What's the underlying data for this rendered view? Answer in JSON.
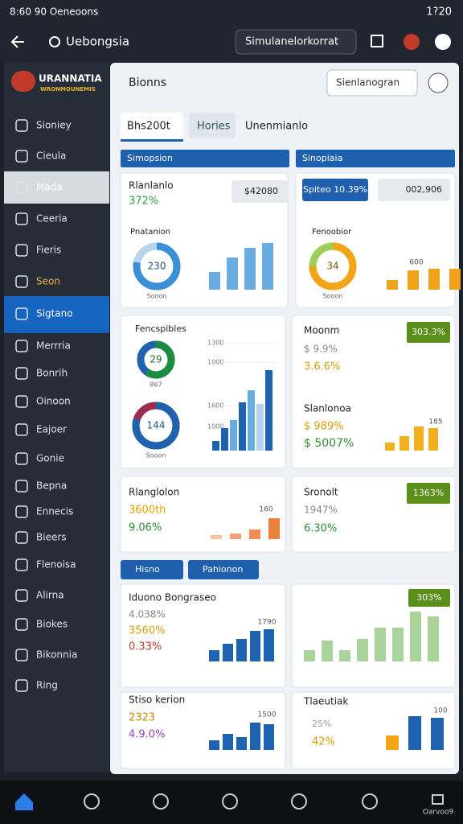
{
  "status_bar": {
    "left": "8:60 90 Oeneoons",
    "right": "1?20"
  },
  "app_bar": {
    "title": "Uebongsia",
    "search": "Simulanelorkorrat"
  },
  "sidebar": {
    "logo": "URANNATIA",
    "logo_sub": "WRONMOUNEMIS",
    "items": [
      "Sioniey",
      "Cieula",
      "Mada",
      "Ceeria",
      "Fieris",
      "Seon",
      "Sigtano",
      "Merrria",
      "Bonrih",
      "Oinoon",
      "Eajoer",
      "Gonie",
      "Bepna",
      "Ennecis",
      "Bieers",
      "Flenoisa",
      "Alirna",
      "Biokes",
      "Bikonnia",
      "Ring"
    ]
  },
  "header": {
    "title": "Bionns",
    "select": "Sienlanogran"
  },
  "tabs": [
    "Bhs200t",
    "Hories",
    "Unenmianlo"
  ],
  "dropdowns": [
    "Simopsion",
    "Sinopiaia",
    "Hisno",
    "Pahionon"
  ],
  "cards": [
    {
      "title": "Rlanlanlo",
      "value": "372%",
      "badge": "$42080",
      "subtitle": "Pnatanion",
      "donut": "230",
      "donut_caption": "Sooon",
      "bar_values": [
        22,
        40,
        52,
        58
      ]
    },
    {
      "badge": "Spiteo 10.39%",
      "badge2": "002,906",
      "subtitle": "Fenoobior",
      "donut": "34",
      "donut_caption": "Sooon",
      "bar_top": "600",
      "bar_values": [
        12,
        24,
        26,
        26
      ]
    },
    {
      "title": "Fencspibles",
      "donut": "29",
      "donut_caption": "867",
      "donut2": "144",
      "donut2_caption": "Sooon",
      "axis": [
        "1300",
        "1000",
        "1600",
        "1000"
      ],
      "bar_values": [
        12,
        28,
        38,
        60,
        75,
        58,
        100
      ]
    },
    {
      "title": "Moonm",
      "badge": "303.3%",
      "value": "$ 9.9%",
      "value2": "3.6.6%",
      "subtitle": "Slanlonoa",
      "value3": "$ 989%",
      "value4": "$ 5007%",
      "bar_top": "185",
      "bar_values": [
        10,
        18,
        30,
        28
      ]
    },
    {
      "title": "Rlanglolon",
      "value": "3600th",
      "value2": "9.06%",
      "bar_top": "160",
      "bar_values": [
        5,
        7,
        12,
        26
      ]
    },
    {
      "title": "Sronolt",
      "badge": "1363%",
      "value": "1947%",
      "value2": "6.30%"
    },
    {
      "title": "Iduono Bongraseo",
      "value": "4.038%",
      "value2": "3560%",
      "value3": "0.33%",
      "bar_top": "1790",
      "bar_values": [
        14,
        22,
        28,
        38,
        40
      ]
    },
    {
      "badge": "303%",
      "bar_values": [
        14,
        26,
        14,
        28,
        42,
        42,
        62,
        56
      ]
    },
    {
      "title": "Stiso kerion",
      "value": "2323",
      "value2": "4.9.0%",
      "bar_top": "1500",
      "bar_values": [
        12,
        20,
        16,
        34,
        32
      ]
    },
    {
      "title": "Tlaeutiak",
      "value": "25%",
      "value2": "42%",
      "bar_top": "100",
      "bar_values": [
        18,
        42,
        40
      ]
    }
  ],
  "bottom_nav": {
    "label": "Oarvoo9"
  }
}
